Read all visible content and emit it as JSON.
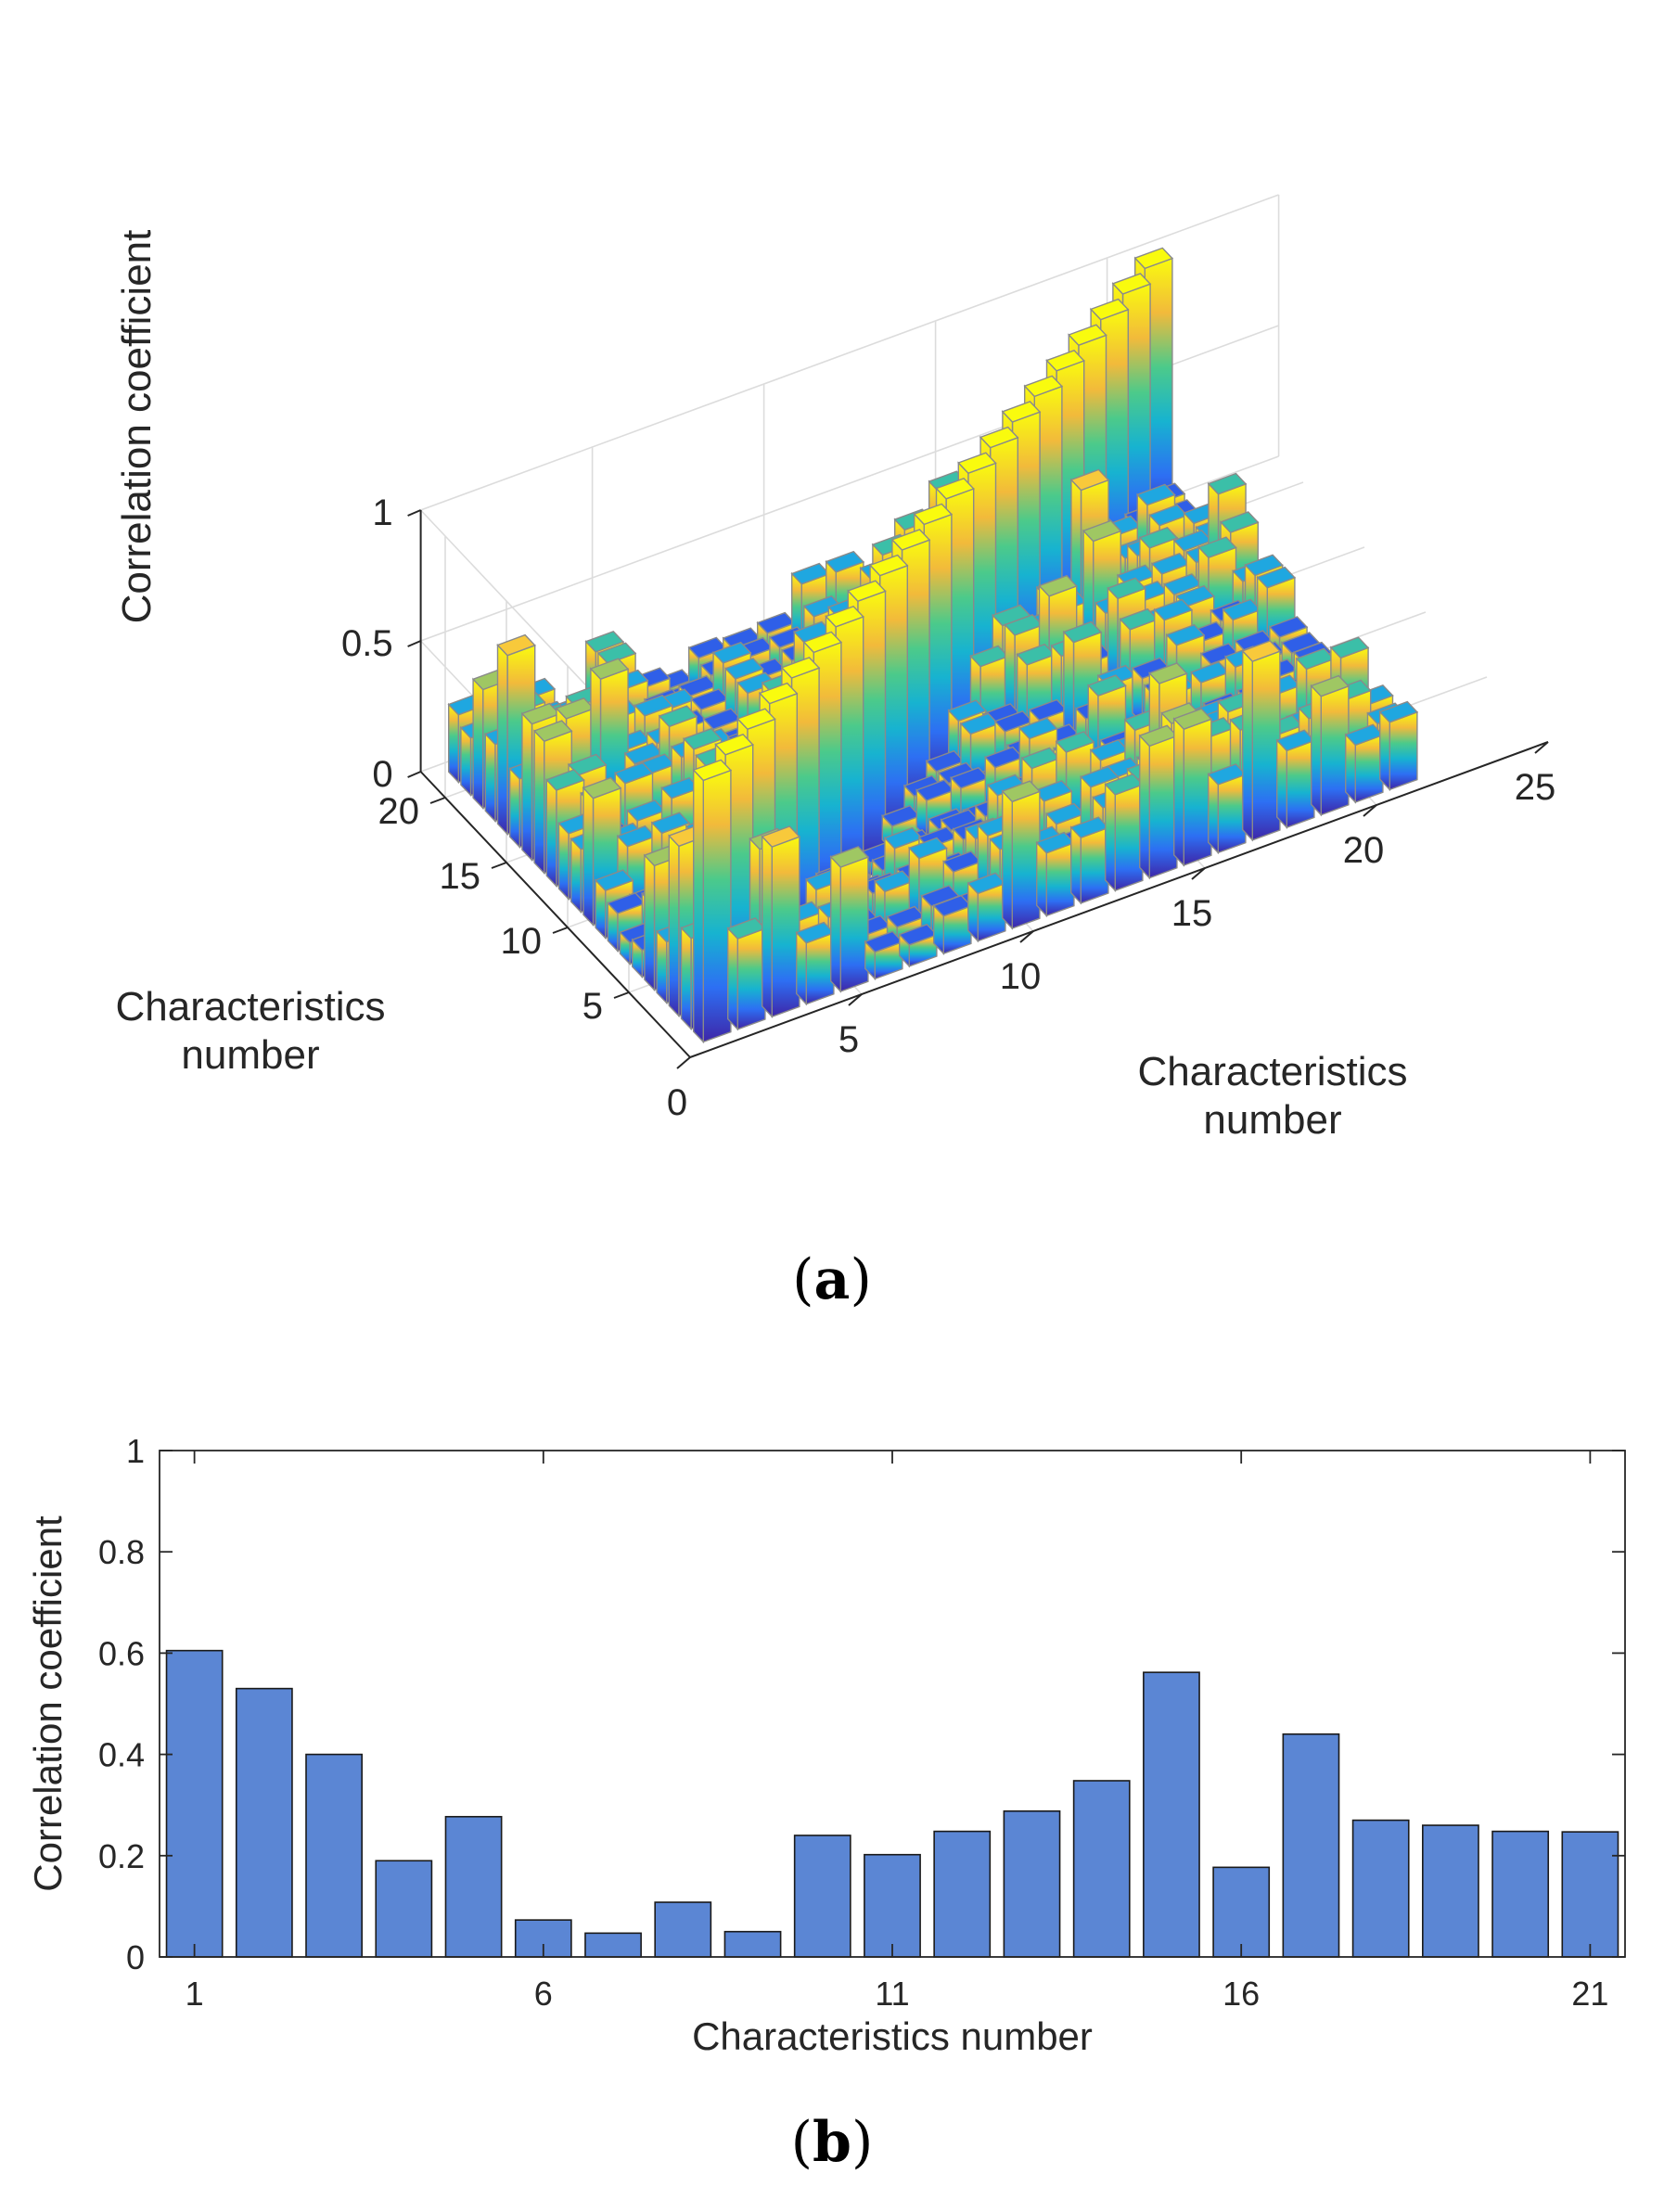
{
  "panel_a": {
    "label_open": "(",
    "label_letter": "a",
    "label_close": ")"
  },
  "panel_b": {
    "label_open": "(",
    "label_letter": "b",
    "label_close": ")"
  },
  "chart_data": [
    {
      "type": "bar3d",
      "title": "",
      "zlabel": "Correlation coefficient",
      "xlabel": "Characteristics number",
      "ylabel": "Characteristics number",
      "x_ticks": [
        "0",
        "5",
        "10",
        "15",
        "20",
        "25"
      ],
      "y_ticks": [
        "5",
        "10",
        "15",
        "20"
      ],
      "z_ticks": [
        "0",
        "0.5",
        "1"
      ],
      "xlim": [
        0,
        25
      ],
      "ylim": [
        0,
        22
      ],
      "zlim": [
        0,
        1
      ],
      "grid": true,
      "colormap": "parula",
      "n": 21,
      "profile": [
        0.6,
        0.53,
        0.4,
        0.19,
        0.28,
        0.07,
        0.05,
        0.11,
        0.05,
        0.24,
        0.2,
        0.25,
        0.29,
        0.35,
        0.56,
        0.18,
        0.44,
        0.27,
        0.26,
        0.25,
        0.25
      ]
    },
    {
      "type": "bar",
      "title": "",
      "xlabel": "Characteristics number",
      "ylabel": "Correlation coefficient",
      "categories": [
        1,
        2,
        3,
        4,
        5,
        6,
        7,
        8,
        9,
        10,
        11,
        12,
        13,
        14,
        15,
        16,
        17,
        18,
        19,
        20,
        21
      ],
      "values": [
        0.605,
        0.53,
        0.4,
        0.19,
        0.277,
        0.073,
        0.047,
        0.108,
        0.05,
        0.24,
        0.202,
        0.248,
        0.288,
        0.348,
        0.562,
        0.177,
        0.44,
        0.27,
        0.26,
        0.248,
        0.247
      ],
      "x_ticks": [
        "1",
        "6",
        "11",
        "16",
        "21"
      ],
      "y_ticks": [
        "0",
        "0.2",
        "0.4",
        "0.6",
        "0.8",
        "1"
      ],
      "ylim": [
        0,
        1
      ],
      "xlim": [
        0.5,
        21.5
      ],
      "bar_color": "#5b86d4",
      "grid": false
    }
  ]
}
